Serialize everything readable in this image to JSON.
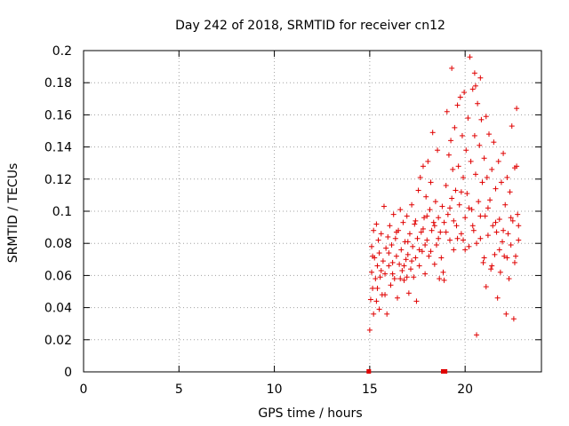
{
  "chart_data": {
    "type": "scatter",
    "title": "Day 242 of 2018, SRMTID for receiver cn12",
    "xlabel": "GPS time / hours",
    "ylabel": "SRMTID / TECUs",
    "xlim": [
      0,
      24
    ],
    "ylim": [
      0,
      0.2
    ],
    "xticks": [
      0,
      5,
      10,
      15,
      20
    ],
    "xtick_labels": [
      "0",
      "5",
      "10",
      "15",
      "20"
    ],
    "yticks": [
      0,
      0.02,
      0.04,
      0.06,
      0.08,
      0.1,
      0.12,
      0.14,
      0.16,
      0.18,
      0.2
    ],
    "ytick_labels": [
      "0",
      "0.02",
      "0.04",
      "0.06",
      "0.08",
      "0.1",
      "0.12",
      "0.14",
      "0.16",
      "0.18",
      "0.2"
    ],
    "grid": true,
    "marker": "plus",
    "color": "#e00000",
    "zero_points_x": [
      14.95,
      18.85,
      18.95
    ],
    "series": [
      {
        "name": "SRMTID",
        "points": [
          [
            15.0,
            0.026
          ],
          [
            15.05,
            0.045
          ],
          [
            15.1,
            0.062
          ],
          [
            15.1,
            0.078
          ],
          [
            15.15,
            0.052
          ],
          [
            15.2,
            0.088
          ],
          [
            15.2,
            0.036
          ],
          [
            15.25,
            0.071
          ],
          [
            15.3,
            0.058
          ],
          [
            15.35,
            0.092
          ],
          [
            15.35,
            0.044
          ],
          [
            15.4,
            0.066
          ],
          [
            15.45,
            0.082
          ],
          [
            15.5,
            0.039
          ],
          [
            15.5,
            0.074
          ],
          [
            15.55,
            0.059
          ],
          [
            15.6,
            0.086
          ],
          [
            15.65,
            0.048
          ],
          [
            15.7,
            0.069
          ],
          [
            15.75,
            0.103
          ],
          [
            15.8,
            0.061
          ],
          [
            15.85,
            0.077
          ],
          [
            15.9,
            0.036
          ],
          [
            15.95,
            0.084
          ],
          [
            16.0,
            0.066
          ],
          [
            16.05,
            0.091
          ],
          [
            16.1,
            0.054
          ],
          [
            16.15,
            0.079
          ],
          [
            16.2,
            0.068
          ],
          [
            16.25,
            0.098
          ],
          [
            16.3,
            0.058
          ],
          [
            16.35,
            0.083
          ],
          [
            16.4,
            0.072
          ],
          [
            16.45,
            0.046
          ],
          [
            16.5,
            0.088
          ],
          [
            16.55,
            0.067
          ],
          [
            16.6,
            0.101
          ],
          [
            16.65,
            0.076
          ],
          [
            16.7,
            0.063
          ],
          [
            16.75,
            0.093
          ],
          [
            16.8,
            0.057
          ],
          [
            16.85,
            0.081
          ],
          [
            16.9,
            0.07
          ],
          [
            16.95,
            0.097
          ],
          [
            17.0,
            0.073
          ],
          [
            17.05,
            0.049
          ],
          [
            17.1,
            0.086
          ],
          [
            17.15,
            0.064
          ],
          [
            17.2,
            0.104
          ],
          [
            17.25,
            0.078
          ],
          [
            17.3,
            0.059
          ],
          [
            17.35,
            0.092
          ],
          [
            17.4,
            0.071
          ],
          [
            17.45,
            0.044
          ],
          [
            17.5,
            0.083
          ],
          [
            17.55,
            0.113
          ],
          [
            17.6,
            0.066
          ],
          [
            17.65,
            0.121
          ],
          [
            17.7,
            0.087
          ],
          [
            17.75,
            0.075
          ],
          [
            17.8,
            0.128
          ],
          [
            17.85,
            0.096
          ],
          [
            17.9,
            0.061
          ],
          [
            17.95,
            0.109
          ],
          [
            18.0,
            0.082
          ],
          [
            18.05,
            0.131
          ],
          [
            18.1,
            0.072
          ],
          [
            18.15,
            0.101
          ],
          [
            18.2,
            0.118
          ],
          [
            18.25,
            0.088
          ],
          [
            18.3,
            0.149
          ],
          [
            18.35,
            0.093
          ],
          [
            18.4,
            0.067
          ],
          [
            18.45,
            0.106
          ],
          [
            18.5,
            0.079
          ],
          [
            18.55,
            0.138
          ],
          [
            18.6,
            0.096
          ],
          [
            18.65,
            0.058
          ],
          [
            18.7,
            0.087
          ],
          [
            18.75,
            0.071
          ],
          [
            18.8,
            0.103
          ],
          [
            18.85,
            0.062
          ],
          [
            18.9,
            0.093
          ],
          [
            19.0,
            0.116
          ],
          [
            19.05,
            0.162
          ],
          [
            19.1,
            0.098
          ],
          [
            19.15,
            0.135
          ],
          [
            19.2,
            0.082
          ],
          [
            19.25,
            0.144
          ],
          [
            19.3,
            0.108
          ],
          [
            19.35,
            0.126
          ],
          [
            19.4,
            0.076
          ],
          [
            19.45,
            0.152
          ],
          [
            19.5,
            0.113
          ],
          [
            19.55,
            0.091
          ],
          [
            19.6,
            0.166
          ],
          [
            19.65,
            0.128
          ],
          [
            19.7,
            0.104
          ],
          [
            19.75,
            0.171
          ],
          [
            19.8,
            0.086
          ],
          [
            19.85,
            0.147
          ],
          [
            19.9,
            0.121
          ],
          [
            19.95,
            0.174
          ],
          [
            20.0,
            0.096
          ],
          [
            20.05,
            0.138
          ],
          [
            20.1,
            0.111
          ],
          [
            20.15,
            0.158
          ],
          [
            20.2,
            0.078
          ],
          [
            20.25,
            0.196
          ],
          [
            20.3,
            0.131
          ],
          [
            20.35,
            0.101
          ],
          [
            20.4,
            0.176
          ],
          [
            20.45,
            0.088
          ],
          [
            20.5,
            0.186
          ],
          [
            20.55,
            0.123
          ],
          [
            20.6,
            0.023
          ],
          [
            20.65,
            0.167
          ],
          [
            20.7,
            0.106
          ],
          [
            20.75,
            0.141
          ],
          [
            20.8,
            0.083
          ],
          [
            20.85,
            0.157
          ],
          [
            20.9,
            0.118
          ],
          [
            20.95,
            0.068
          ],
          [
            21.0,
            0.133
          ],
          [
            21.05,
            0.097
          ],
          [
            21.1,
            0.053
          ],
          [
            21.15,
            0.121
          ],
          [
            21.2,
            0.085
          ],
          [
            21.25,
            0.148
          ],
          [
            21.3,
            0.107
          ],
          [
            21.35,
            0.064
          ],
          [
            21.4,
            0.126
          ],
          [
            21.45,
            0.091
          ],
          [
            21.5,
            0.143
          ],
          [
            21.55,
            0.073
          ],
          [
            21.6,
            0.114
          ],
          [
            21.65,
            0.087
          ],
          [
            21.7,
            0.046
          ],
          [
            21.75,
            0.131
          ],
          [
            21.8,
            0.095
          ],
          [
            21.85,
            0.062
          ],
          [
            21.9,
            0.118
          ],
          [
            21.95,
            0.081
          ],
          [
            22.0,
            0.136
          ],
          [
            22.05,
            0.072
          ],
          [
            22.1,
            0.104
          ],
          [
            22.15,
            0.036
          ],
          [
            22.2,
            0.121
          ],
          [
            22.25,
            0.086
          ],
          [
            22.3,
            0.058
          ],
          [
            22.35,
            0.112
          ],
          [
            22.4,
            0.079
          ],
          [
            22.45,
            0.153
          ],
          [
            22.5,
            0.094
          ],
          [
            22.55,
            0.033
          ],
          [
            22.6,
            0.127
          ],
          [
            22.65,
            0.072
          ],
          [
            22.7,
            0.164
          ],
          [
            22.75,
            0.098
          ],
          [
            22.8,
            0.082
          ],
          [
            15.15,
            0.072
          ],
          [
            15.4,
            0.052
          ],
          [
            15.6,
            0.063
          ],
          [
            15.8,
            0.048
          ],
          [
            16.0,
            0.074
          ],
          [
            16.2,
            0.061
          ],
          [
            16.4,
            0.087
          ],
          [
            16.6,
            0.058
          ],
          [
            16.8,
            0.066
          ],
          [
            17.0,
            0.081
          ],
          [
            17.2,
            0.069
          ],
          [
            17.4,
            0.094
          ],
          [
            17.6,
            0.076
          ],
          [
            17.8,
            0.089
          ],
          [
            18.0,
            0.097
          ],
          [
            18.2,
            0.075
          ],
          [
            18.4,
            0.091
          ],
          [
            18.6,
            0.083
          ],
          [
            19.0,
            0.087
          ],
          [
            19.2,
            0.102
          ],
          [
            19.4,
            0.094
          ],
          [
            19.6,
            0.083
          ],
          [
            19.8,
            0.112
          ],
          [
            20.0,
            0.076
          ],
          [
            20.2,
            0.102
          ],
          [
            20.4,
            0.091
          ],
          [
            20.6,
            0.08
          ],
          [
            20.8,
            0.097
          ],
          [
            21.0,
            0.071
          ],
          [
            21.2,
            0.102
          ],
          [
            21.4,
            0.066
          ],
          [
            21.6,
            0.093
          ],
          [
            21.8,
            0.076
          ],
          [
            22.0,
            0.088
          ],
          [
            22.2,
            0.071
          ],
          [
            22.4,
            0.096
          ],
          [
            22.6,
            0.068
          ],
          [
            22.8,
            0.091
          ],
          [
            19.3,
            0.189
          ],
          [
            20.55,
            0.178
          ],
          [
            20.8,
            0.183
          ],
          [
            21.1,
            0.159
          ],
          [
            22.7,
            0.128
          ],
          [
            20.5,
            0.147
          ],
          [
            19.9,
            0.082
          ],
          [
            18.9,
            0.057
          ],
          [
            17.9,
            0.079
          ],
          [
            16.95,
            0.059
          ]
        ]
      }
    ]
  }
}
